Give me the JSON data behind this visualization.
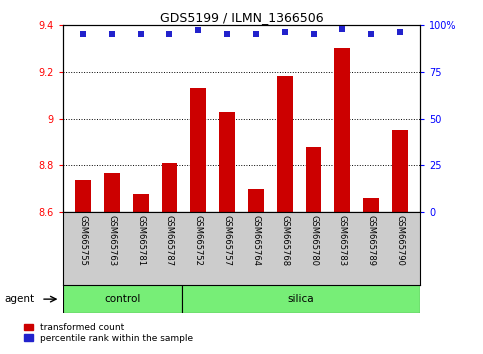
{
  "title": "GDS5199 / ILMN_1366506",
  "samples": [
    "GSM665755",
    "GSM665763",
    "GSM665781",
    "GSM665787",
    "GSM665752",
    "GSM665757",
    "GSM665764",
    "GSM665768",
    "GSM665780",
    "GSM665783",
    "GSM665789",
    "GSM665790"
  ],
  "red_values": [
    8.74,
    8.77,
    8.68,
    8.81,
    9.13,
    9.03,
    8.7,
    9.18,
    8.88,
    9.3,
    8.66,
    8.95
  ],
  "blue_values": [
    95,
    95,
    95,
    95,
    97,
    95,
    95,
    96,
    95,
    98,
    95,
    96
  ],
  "ylim_left": [
    8.6,
    9.4
  ],
  "ylim_right": [
    0,
    100
  ],
  "yticks_left": [
    8.6,
    8.8,
    9.0,
    9.2,
    9.4
  ],
  "yticks_right": [
    0,
    25,
    50,
    75,
    100
  ],
  "ytick_labels_left": [
    "8.6",
    "8.8",
    "9",
    "9.2",
    "9.4"
  ],
  "ytick_labels_right": [
    "0",
    "25",
    "50",
    "75",
    "100%"
  ],
  "grid_values": [
    8.8,
    9.0,
    9.2
  ],
  "n_control": 4,
  "n_silica": 8,
  "bar_color": "#cc0000",
  "dot_color": "#2222cc",
  "control_color": "#77ee77",
  "silica_color": "#77ee77",
  "label_bg_color": "#cccccc",
  "agent_label": "agent",
  "control_label": "control",
  "silica_label": "silica",
  "legend_red": "transformed count",
  "legend_blue": "percentile rank within the sample",
  "bar_bottom": 8.6,
  "bar_width": 0.55
}
